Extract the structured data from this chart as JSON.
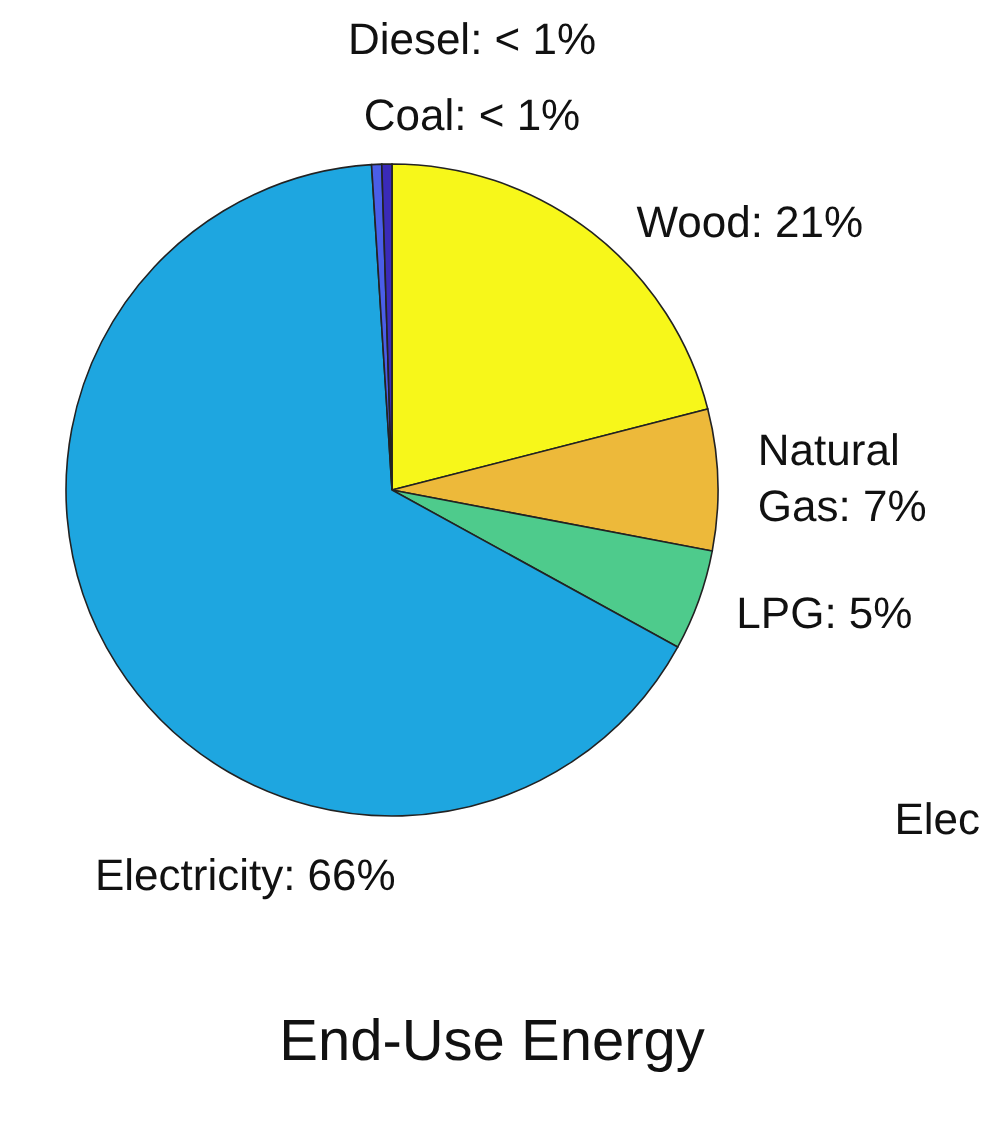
{
  "chart_data": {
    "type": "pie",
    "title": "End-Use Energy",
    "categories": [
      "Wood",
      "Natural Gas",
      "LPG",
      "Electricity",
      "Coal",
      "Diesel"
    ],
    "values": [
      21,
      7,
      5,
      66,
      0.5,
      0.5
    ],
    "value_labels": [
      "21%",
      "7%",
      "5%",
      "66%",
      "< 1%",
      "< 1%"
    ],
    "colors": [
      "#f7f71a",
      "#edb93a",
      "#4ecb8c",
      "#1ea6e0",
      "#4a5ee8",
      "#3a2ab8"
    ],
    "annotations": [
      "Elec"
    ]
  }
}
